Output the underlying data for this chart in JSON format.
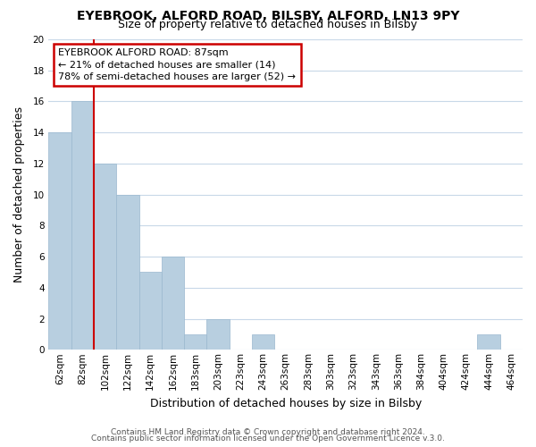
{
  "title_line1": "EYEBROOK, ALFORD ROAD, BILSBY, ALFORD, LN13 9PY",
  "title_line2": "Size of property relative to detached houses in Bilsby",
  "xlabel": "Distribution of detached houses by size in Bilsby",
  "ylabel": "Number of detached properties",
  "bin_labels": [
    "62sqm",
    "82sqm",
    "102sqm",
    "122sqm",
    "142sqm",
    "162sqm",
    "183sqm",
    "203sqm",
    "223sqm",
    "243sqm",
    "263sqm",
    "283sqm",
    "303sqm",
    "323sqm",
    "343sqm",
    "363sqm",
    "384sqm",
    "404sqm",
    "424sqm",
    "444sqm",
    "464sqm"
  ],
  "bar_heights": [
    14,
    16,
    12,
    10,
    5,
    6,
    1,
    2,
    0,
    1,
    0,
    0,
    0,
    0,
    0,
    0,
    0,
    0,
    0,
    1,
    0
  ],
  "bar_color": "#b8cfe0",
  "bar_edge_color": "#9ab8cf",
  "red_line_index": 1,
  "annotation_line1": "EYEBROOK ALFORD ROAD: 87sqm",
  "annotation_line2": "← 21% of detached houses are smaller (14)",
  "annotation_line3": "78% of semi-detached houses are larger (52) →",
  "annotation_box_color": "#ffffff",
  "annotation_box_edge": "#cc0000",
  "ylim": [
    0,
    20
  ],
  "yticks": [
    0,
    2,
    4,
    6,
    8,
    10,
    12,
    14,
    16,
    18,
    20
  ],
  "footer_line1": "Contains HM Land Registry data © Crown copyright and database right 2024.",
  "footer_line2": "Contains public sector information licensed under the Open Government Licence v.3.0.",
  "background_color": "#ffffff",
  "grid_color": "#c8d8e8",
  "title1_fontsize": 10,
  "title2_fontsize": 9,
  "xlabel_fontsize": 9,
  "ylabel_fontsize": 9,
  "tick_fontsize": 7.5,
  "footer_fontsize": 6.5,
  "ann_fontsize": 8
}
